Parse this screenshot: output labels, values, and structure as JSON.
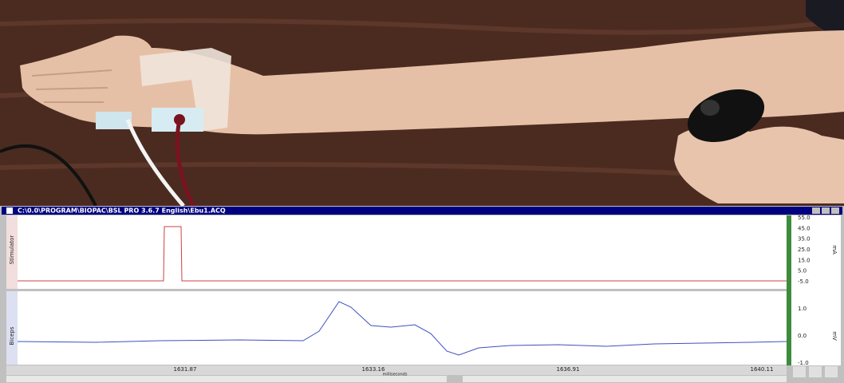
{
  "window": {
    "title": "C:\\0.0\\PROGRAM\\BIOPAC\\BSL PRO 3.6.7 English\\Ebu1.ACQ",
    "channels": [
      {
        "label": "Stimulator",
        "unit": "mA",
        "scale": [
          "55.0",
          "45.0",
          "35.0",
          "25.0",
          "15.0",
          "5.0",
          "-5.0"
        ]
      },
      {
        "label": "Biceps",
        "unit": "mV",
        "scale": [
          "1.0",
          "0.0",
          "-1.0"
        ]
      }
    ],
    "time_axis": {
      "ticks": [
        "1631.87",
        "1633.16",
        "1636.91",
        "1640.11"
      ],
      "unit": "milliseconds"
    }
  }
}
